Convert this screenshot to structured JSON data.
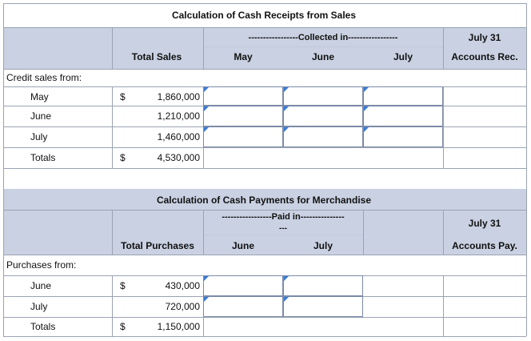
{
  "receipts": {
    "title": "Calculation of Cash Receipts from Sales",
    "collected_header": "-----------------Collected in-----------------",
    "col_total": "Total Sales",
    "col_may": "May",
    "col_june": "June",
    "col_july": "July",
    "col_ar_top": "July 31",
    "col_ar_bottom": "Accounts Rec.",
    "section_label": "Credit sales from:",
    "rows": [
      {
        "label": "May",
        "currency": "$",
        "total": "1,860,000"
      },
      {
        "label": "June",
        "currency": "",
        "total": "1,210,000"
      },
      {
        "label": "July",
        "currency": "",
        "total": "1,460,000"
      },
      {
        "label": "Totals",
        "currency": "$",
        "total": "4,530,000"
      }
    ]
  },
  "payments": {
    "title": "Calculation of Cash Payments for Merchandise",
    "paid_header": "-----------------Paid in---------------",
    "paid_header_cont": "---",
    "col_total": "Total Purchases",
    "col_june": "June",
    "col_july": "July",
    "col_ap_top": "July 31",
    "col_ap_bottom": "Accounts Pay.",
    "section_label": "Purchases from:",
    "rows": [
      {
        "label": "June",
        "currency": "$",
        "total": "430,000"
      },
      {
        "label": "July",
        "currency": "",
        "total": "720,000"
      },
      {
        "label": "Totals",
        "currency": "$",
        "total": "1,150,000"
      }
    ]
  },
  "colors": {
    "header_bg": "#c9d1e2",
    "input_flag": "#3a7bd5",
    "grid": "#9ba3b3"
  }
}
